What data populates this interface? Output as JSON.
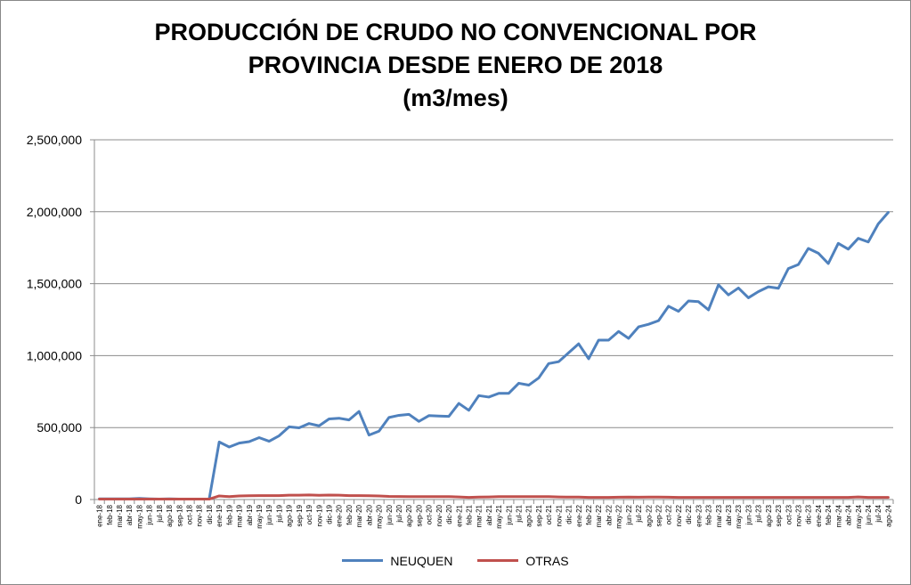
{
  "chart_data": {
    "type": "line",
    "title_lines": [
      "PRODUCCIÓN DE CRUDO NO CONVENCIONAL POR",
      "PROVINCIA DESDE ENERO DE 2018",
      "(m3/mes)"
    ],
    "x": [
      "ene-18",
      "feb-18",
      "mar-18",
      "abr-18",
      "may-18",
      "jun-18",
      "jul-18",
      "ago-18",
      "sep-18",
      "oct-18",
      "nov-18",
      "dic-18",
      "ene-19",
      "feb-19",
      "mar-19",
      "abr-19",
      "may-19",
      "jun-19",
      "jul-19",
      "ago-19",
      "sep-19",
      "oct-19",
      "nov-19",
      "dic-19",
      "ene-20",
      "feb-20",
      "mar-20",
      "abr-20",
      "may-20",
      "jun-20",
      "jul-20",
      "ago-20",
      "sep-20",
      "oct-20",
      "nov-20",
      "dic-20",
      "ene-21",
      "feb-21",
      "mar-21",
      "abr-21",
      "may-21",
      "jun-21",
      "jul-21",
      "ago-21",
      "sep-21",
      "oct-21",
      "nov-21",
      "dic-21",
      "ene-22",
      "feb-22",
      "mar-22",
      "abr-22",
      "may-22",
      "jun-22",
      "jul-22",
      "ago-22",
      "sep-22",
      "oct-22",
      "nov-22",
      "dic-22",
      "ene-23",
      "feb-23",
      "mar-23",
      "abr-23",
      "may-23",
      "jun-23",
      "jul-23",
      "ago-23",
      "sep-23",
      "oct-23",
      "nov-23",
      "dic-23",
      "ene-24",
      "feb-24",
      "mar-24",
      "abr-24",
      "may-24",
      "jun-24",
      "jul-24",
      "ago-24"
    ],
    "series": [
      {
        "name": "NEUQUEN",
        "color": "#4f81bd",
        "values": [
          5000,
          5000,
          5000,
          5000,
          8000,
          5000,
          3000,
          5000,
          3000,
          3000,
          3000,
          3000,
          400000,
          365000,
          392000,
          402000,
          430000,
          405000,
          443000,
          505000,
          498000,
          528000,
          512000,
          560000,
          565000,
          553000,
          612000,
          448000,
          475000,
          570000,
          585000,
          592000,
          543000,
          583000,
          580000,
          578000,
          668000,
          620000,
          722000,
          712000,
          738000,
          738000,
          808000,
          795000,
          845000,
          945000,
          958000,
          1020000,
          1082000,
          978000,
          1108000,
          1108000,
          1168000,
          1120000,
          1200000,
          1218000,
          1243000,
          1343000,
          1308000,
          1380000,
          1375000,
          1318000,
          1492000,
          1422000,
          1470000,
          1402000,
          1445000,
          1478000,
          1468000,
          1605000,
          1633000,
          1745000,
          1712000,
          1640000,
          1780000,
          1740000,
          1815000,
          1790000,
          1915000,
          1995000
        ]
      },
      {
        "name": "OTRAS",
        "color": "#c0504d",
        "values": [
          3000,
          3000,
          3000,
          3000,
          3000,
          3000,
          3000,
          3000,
          3000,
          3000,
          3000,
          3000,
          25000,
          20000,
          25000,
          26000,
          27000,
          27000,
          27000,
          30000,
          30000,
          32000,
          29000,
          31000,
          30000,
          27000,
          27000,
          26000,
          25000,
          22000,
          21000,
          20000,
          20000,
          20000,
          20000,
          20000,
          18000,
          15000,
          17000,
          18000,
          20000,
          20000,
          20000,
          20000,
          20000,
          20000,
          18000,
          17000,
          17000,
          15000,
          15000,
          15000,
          16000,
          17000,
          16000,
          17000,
          17000,
          16000,
          15000,
          15000,
          15000,
          15000,
          15000,
          15000,
          15000,
          15000,
          15000,
          15000,
          15000,
          15000,
          15000,
          15000,
          15000,
          15000,
          15000,
          15000,
          18000,
          15000,
          15000,
          15000
        ]
      }
    ],
    "ylim": [
      0,
      2500000
    ],
    "yticks": [
      0,
      500000,
      1000000,
      1500000,
      2000000,
      2500000
    ],
    "ytick_labels": [
      "0",
      "500,000",
      "1,000,000",
      "1,500,000",
      "2,000,000",
      "2,500,000"
    ],
    "grid": true,
    "legend_position": "bottom"
  }
}
